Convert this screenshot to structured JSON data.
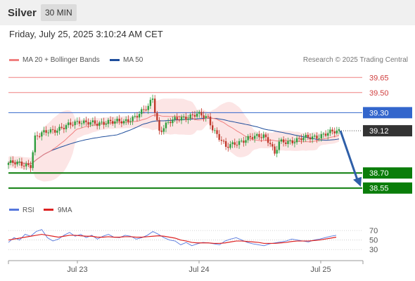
{
  "header": {
    "title": "Silver",
    "interval": "30 MIN",
    "datetime": "Friday, July 25, 2025 3:10:24 AM CET"
  },
  "legend": {
    "ma20_label": "MA 20 + Bollinger Bands",
    "ma50_label": "MA 50",
    "credit": "Research © 2025 Trading Central",
    "rsi_label": "RSI",
    "rsi_ma_label": "9MA"
  },
  "colors": {
    "ma20": "#f08080",
    "ma50": "#1f4e9c",
    "bollinger_fill": "#fbe0e0",
    "candle_up": "#2e9e3e",
    "candle_down": "#c0392b",
    "support": "#0a7d0a",
    "pivot": "#3366cc",
    "current": "#333333",
    "resistance": "#f08080",
    "rsi": "#5577dd",
    "rsi_ma": "#dd2222",
    "forecast_arrow": "#2f5fa8"
  },
  "chart_data": [
    {
      "type": "candlestick",
      "title": "Silver",
      "interval": "30 MIN",
      "xlabel": "",
      "ylabel": "",
      "x_ticks": [
        "Jul 23",
        "Jul 24",
        "Jul 25"
      ],
      "ylim": [
        38.45,
        39.75
      ],
      "candle_count": 150,
      "candle_path_approx": [
        {
          "x": 0,
          "y": 38.8
        },
        {
          "x": 10,
          "y": 38.78
        },
        {
          "x": 12,
          "y": 39.05
        },
        {
          "x": 18,
          "y": 39.12
        },
        {
          "x": 25,
          "y": 39.15
        },
        {
          "x": 32,
          "y": 39.22
        },
        {
          "x": 40,
          "y": 39.18
        },
        {
          "x": 45,
          "y": 39.22
        },
        {
          "x": 52,
          "y": 39.2
        },
        {
          "x": 58,
          "y": 39.28
        },
        {
          "x": 63,
          "y": 39.35
        },
        {
          "x": 65,
          "y": 39.45
        },
        {
          "x": 66,
          "y": 39.32
        },
        {
          "x": 68,
          "y": 39.12
        },
        {
          "x": 72,
          "y": 39.2
        },
        {
          "x": 78,
          "y": 39.25
        },
        {
          "x": 85,
          "y": 39.28
        },
        {
          "x": 90,
          "y": 39.25
        },
        {
          "x": 92,
          "y": 39.15
        },
        {
          "x": 95,
          "y": 39.05
        },
        {
          "x": 98,
          "y": 38.95
        },
        {
          "x": 102,
          "y": 39.0
        },
        {
          "x": 110,
          "y": 39.05
        },
        {
          "x": 115,
          "y": 39.08
        },
        {
          "x": 118,
          "y": 39.0
        },
        {
          "x": 120,
          "y": 38.88
        },
        {
          "x": 122,
          "y": 39.0
        },
        {
          "x": 130,
          "y": 39.03
        },
        {
          "x": 140,
          "y": 39.07
        },
        {
          "x": 149,
          "y": 39.12
        }
      ],
      "levels": [
        {
          "label": "39.65",
          "value": 39.65,
          "kind": "resistance"
        },
        {
          "label": "39.50",
          "value": 39.5,
          "kind": "resistance"
        },
        {
          "label": "39.30",
          "value": 39.3,
          "kind": "pivot"
        },
        {
          "label": "39.12",
          "value": 39.12,
          "kind": "current"
        },
        {
          "label": "38.70",
          "value": 38.7,
          "kind": "support"
        },
        {
          "label": "38.55",
          "value": 38.55,
          "kind": "support"
        }
      ],
      "forecast": {
        "from": 39.12,
        "to": 38.55
      },
      "series": [
        {
          "name": "MA 20 + Bollinger Bands"
        },
        {
          "name": "MA 50"
        }
      ]
    },
    {
      "type": "line",
      "title": "",
      "yticks": [
        "70",
        "50",
        "30"
      ],
      "ylim": [
        20,
        85
      ],
      "series": [
        {
          "name": "RSI",
          "values": [
            45,
            55,
            50,
            62,
            58,
            68,
            72,
            55,
            48,
            52,
            60,
            66,
            58,
            62,
            55,
            60,
            52,
            58,
            62,
            56,
            55,
            60,
            58,
            52,
            55,
            60,
            68,
            62,
            55,
            50,
            48,
            40,
            45,
            38,
            42,
            45,
            44,
            42,
            40,
            48,
            52,
            55,
            50,
            45,
            42,
            40,
            38,
            42,
            44,
            46,
            48,
            52,
            50,
            48,
            46,
            50,
            52,
            55,
            58,
            60
          ]
        },
        {
          "name": "9MA",
          "values": [
            50,
            52,
            54,
            56,
            58,
            60,
            62,
            60,
            58,
            56,
            58,
            60,
            60,
            59,
            58,
            58,
            56,
            56,
            57,
            56,
            56,
            57,
            57,
            56,
            56,
            57,
            58,
            59,
            58,
            56,
            54,
            50,
            48,
            45,
            44,
            44,
            44,
            43,
            43,
            44,
            46,
            48,
            48,
            47,
            46,
            45,
            43,
            43,
            43,
            44,
            45,
            47,
            48,
            48,
            48,
            49,
            50,
            52,
            54,
            56
          ]
        }
      ]
    }
  ]
}
